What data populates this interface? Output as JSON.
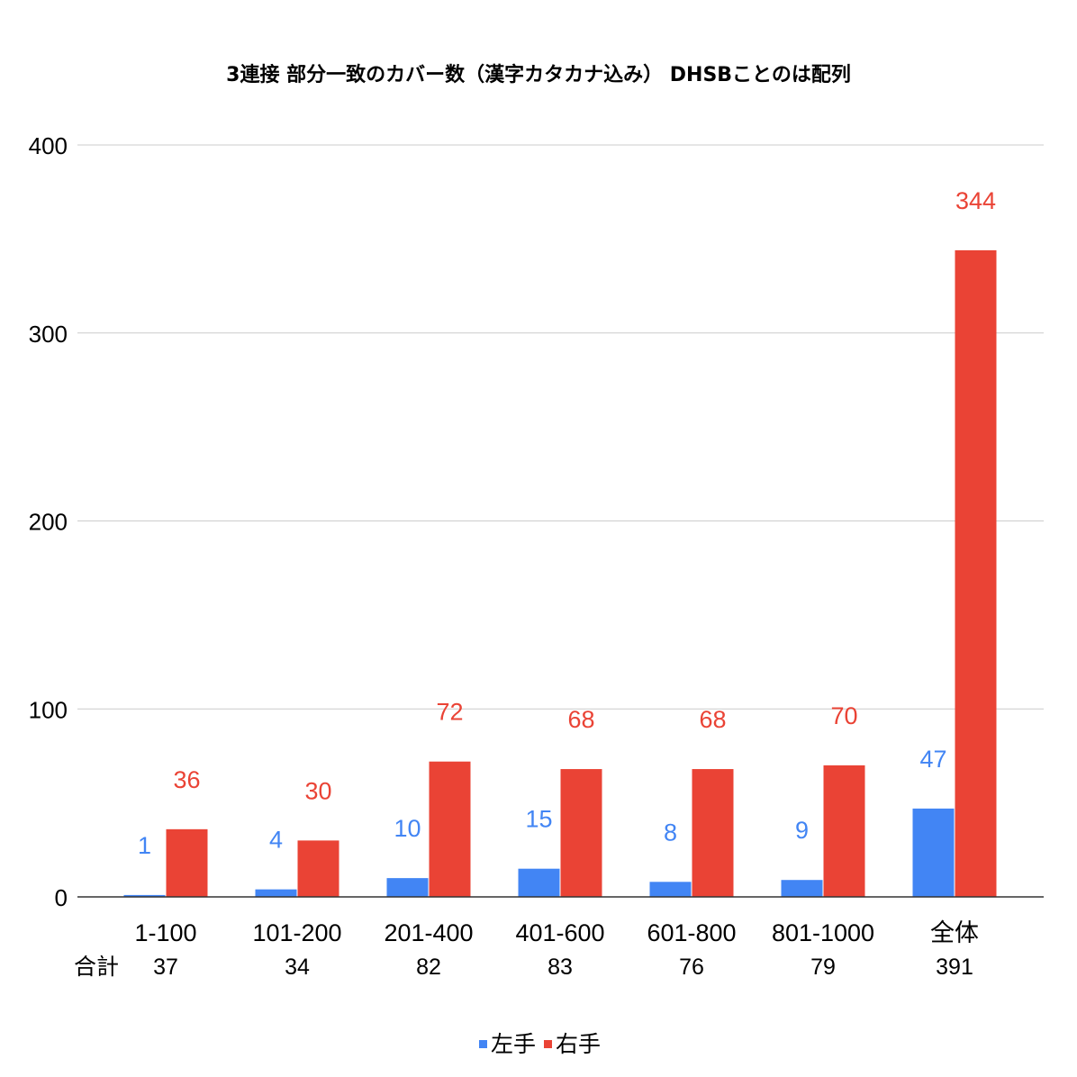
{
  "chart_data": {
    "type": "bar",
    "title": "3連接 部分一致のカバー数（漢字カタカナ込み） DHSBことのは配列",
    "categories": [
      "1-100",
      "101-200",
      "201-400",
      "401-600",
      "601-800",
      "801-1000",
      "全体"
    ],
    "totals_label": "合計",
    "totals": [
      "37",
      "34",
      "82",
      "83",
      "76",
      "79",
      "391"
    ],
    "series": [
      {
        "name": "左手",
        "color": "#4285f4",
        "values": [
          1,
          4,
          10,
          15,
          8,
          9,
          47
        ]
      },
      {
        "name": "右手",
        "color": "#ea4335",
        "values": [
          36,
          30,
          72,
          68,
          68,
          70,
          344
        ]
      }
    ],
    "ylim": [
      0,
      400
    ],
    "yticks": [
      "0",
      "100",
      "200",
      "300",
      "400"
    ],
    "grid": true,
    "legend_position": "bottom",
    "data_labels": true
  }
}
